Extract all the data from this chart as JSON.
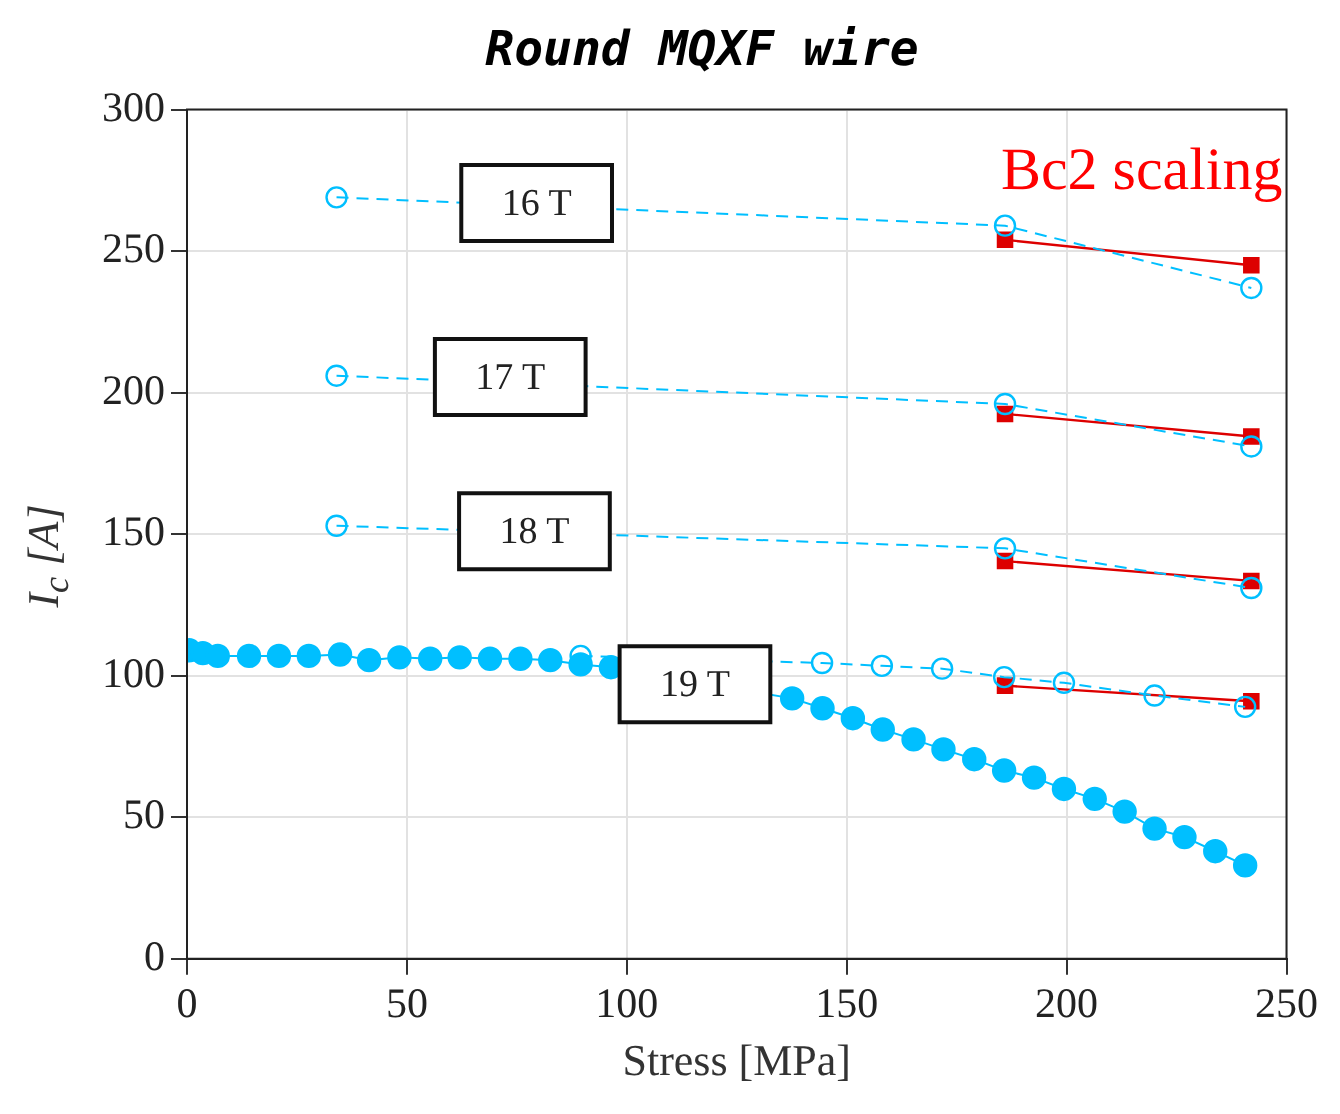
{
  "chart_data": {
    "type": "line",
    "title": "Round MQXF wire",
    "xlabel": "Stress [MPa]",
    "ylabel": "I$_{c}$ [A]",
    "xlim": [
      0,
      250
    ],
    "xticks": [
      0,
      50,
      100,
      150,
      200,
      250
    ],
    "ylim": [
      0,
      300
    ],
    "yticks": [
      0,
      50,
      100,
      150,
      200,
      250,
      300
    ],
    "grid": true,
    "series": [
      {
        "color": "#00bfff",
        "marker": "circle",
        "line_style": "solid",
        "x": [
          0.5,
          3.6,
          7,
          14.1,
          20.9,
          27.7,
          34.8,
          41.4,
          48.3,
          55.3,
          62,
          68.9,
          75.8,
          82.6,
          89.5,
          96.4,
          137.6,
          144.5,
          151.4,
          158.2,
          165.2,
          172,
          179,
          185.8,
          192.6,
          199.4,
          206.4,
          213.2,
          220,
          226.8,
          233.8,
          240.6
        ],
        "values": [
          109,
          108,
          107,
          107,
          107,
          107,
          107.5,
          105.5,
          106.5,
          106,
          106.5,
          106,
          106,
          105.5,
          104,
          103,
          92,
          88.5,
          85,
          81,
          77.5,
          74,
          70.5,
          66.5,
          64,
          60,
          56.5,
          52,
          46,
          43,
          38,
          33
        ]
      },
      {
        "color": "#00bfff",
        "marker": "circle",
        "line_style": "dashed",
        "x": [
          34,
          186,
          242
        ],
        "values": [
          269,
          259,
          237
        ]
      },
      {
        "color": "#00bfff",
        "marker": "circle",
        "line_style": "dashed",
        "x": [
          34,
          186,
          242
        ],
        "values": [
          206,
          196,
          181
        ]
      },
      {
        "color": "#00bfff",
        "marker": "circle",
        "line_style": "dashed",
        "x": [
          34,
          186,
          242
        ],
        "values": [
          153,
          145,
          131
        ]
      },
      {
        "color": "#00bfff",
        "marker": "circle",
        "line_style": "dashed",
        "x": [
          89.5,
          144.4,
          158,
          171.7,
          185.8,
          199.4,
          220,
          240.6
        ],
        "values": [
          107,
          104.5,
          103.5,
          102.5,
          99.5,
          97.5,
          93,
          89
        ]
      },
      {
        "color": "#dd0000",
        "marker": "square",
        "line_style": "solid",
        "x": [
          186,
          242
        ],
        "values": [
          254,
          245
        ]
      },
      {
        "color": "#dd0000",
        "marker": "square",
        "line_style": "solid",
        "x": [
          186,
          242
        ],
        "values": [
          192.5,
          184.5
        ]
      },
      {
        "color": "#dd0000",
        "marker": "square",
        "line_style": "solid",
        "x": [
          186,
          242
        ],
        "values": [
          140.5,
          133.5
        ]
      },
      {
        "color": "#dd0000",
        "marker": "square",
        "line_style": "solid",
        "x": [
          186,
          242
        ],
        "values": [
          96.5,
          91
        ]
      }
    ],
    "annotations": [
      {
        "text": "16 T",
        "x": 79.5,
        "y": 267
      },
      {
        "text": "17 T",
        "x": 73.5,
        "y": 205.5
      },
      {
        "text": "18 T",
        "x": 79,
        "y": 151
      },
      {
        "text": "19 T",
        "x": 115.5,
        "y": 97
      },
      "Bc2 scaling"
    ]
  }
}
